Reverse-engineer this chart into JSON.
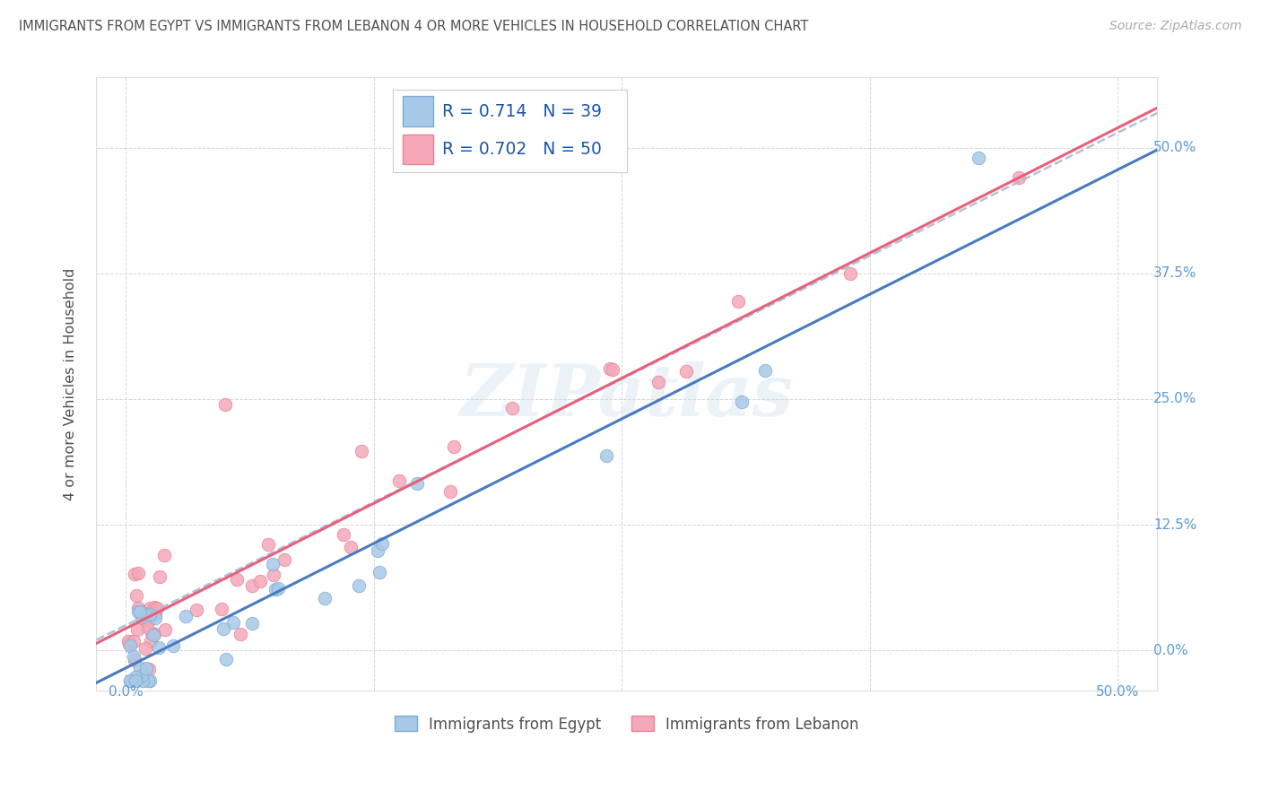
{
  "title": "IMMIGRANTS FROM EGYPT VS IMMIGRANTS FROM LEBANON 4 OR MORE VEHICLES IN HOUSEHOLD CORRELATION CHART",
  "source": "Source: ZipAtlas.com",
  "ylabel": "4 or more Vehicles in Household",
  "egypt_color": "#a8c8e8",
  "lebanon_color": "#f4a8b8",
  "egypt_edge": "#7aadd4",
  "lebanon_edge": "#e88098",
  "trend_egypt_color": "#4a7abf",
  "trend_lebanon_color": "#e8607a",
  "trend_dashed_color": "#aabbd4",
  "R_egypt": 0.714,
  "N_egypt": 39,
  "R_lebanon": 0.702,
  "N_lebanon": 50,
  "legend_egypt": "Immigrants from Egypt",
  "legend_lebanon": "Immigrants from Lebanon",
  "watermark": "ZIPatlas",
  "background_color": "#ffffff",
  "grid_color": "#cccccc",
  "title_color": "#505050",
  "tick_color": "#5b9bd5",
  "source_color": "#aaaaaa"
}
